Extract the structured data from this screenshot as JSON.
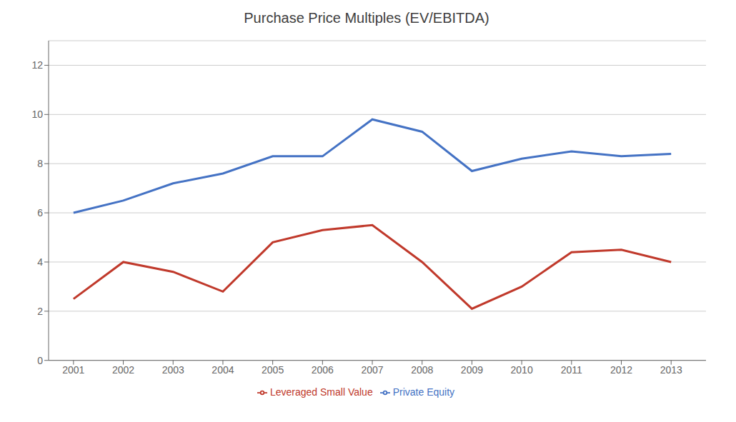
{
  "chart_data": {
    "type": "line",
    "title": "Purchase Price Multiples (EV/EBITDA)",
    "x": [
      2001,
      2002,
      2003,
      2004,
      2005,
      2006,
      2007,
      2008,
      2009,
      2010,
      2011,
      2012,
      2013
    ],
    "series": [
      {
        "name": "Private Equity",
        "color": "#4472C4",
        "values": [
          6.0,
          6.5,
          7.2,
          7.6,
          8.3,
          8.3,
          9.8,
          9.3,
          7.7,
          8.2,
          8.5,
          8.3,
          8.4
        ]
      },
      {
        "name": "Leveraged Small Value",
        "color": "#C0392B",
        "values": [
          2.5,
          4.0,
          3.6,
          2.8,
          4.8,
          5.3,
          5.5,
          4.0,
          2.1,
          3.0,
          4.4,
          4.5,
          4.0
        ]
      }
    ],
    "xlim": [
      2000.5,
      2013.7
    ],
    "xticks": [
      2001,
      2002,
      2003,
      2004,
      2005,
      2006,
      2007,
      2008,
      2009,
      2010,
      2011,
      2012,
      2013
    ],
    "ylim": [
      0,
      13
    ],
    "yticks": [
      0,
      2,
      4,
      6,
      8,
      10,
      12
    ],
    "grid": "y",
    "legend": "bottom"
  }
}
